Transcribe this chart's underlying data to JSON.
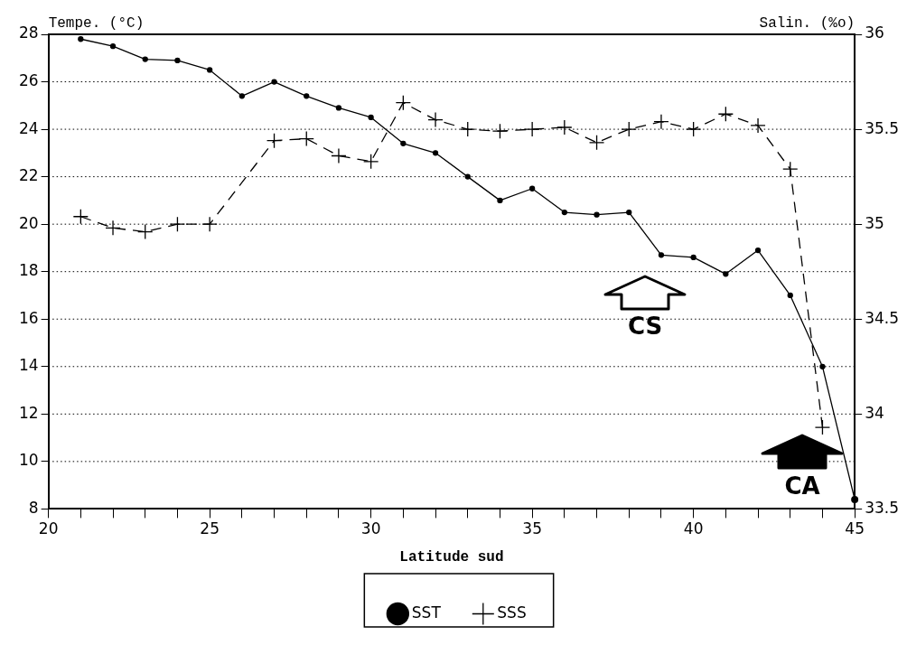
{
  "chart_data": {
    "type": "line",
    "xlabel": "Latitude sud",
    "ylabel": "Tempe. (°C)",
    "y2label": "Salin. (%o)",
    "xlim": [
      20,
      45
    ],
    "xticks": [
      20,
      {
        "value": 21,
        "label": null
      },
      {
        "value": 22,
        "label": null
      },
      {
        "value": 23,
        "label": null
      },
      {
        "value": 24,
        "label": null
      },
      25,
      {
        "value": 26,
        "label": null
      },
      {
        "value": 27,
        "label": null
      },
      {
        "value": 28,
        "label": null
      },
      {
        "value": 29,
        "label": null
      },
      30,
      {
        "value": 31,
        "label": null
      },
      {
        "value": 32,
        "label": null
      },
      {
        "value": 33,
        "label": null
      },
      {
        "value": 34,
        "label": null
      },
      35,
      {
        "value": 36,
        "label": null
      },
      {
        "value": 37,
        "label": null
      },
      {
        "value": 38,
        "label": null
      },
      {
        "value": 39,
        "label": null
      },
      40,
      {
        "value": 41,
        "label": null
      },
      {
        "value": 42,
        "label": null
      },
      {
        "value": 43,
        "label": null
      },
      {
        "value": 44,
        "label": null
      },
      45
    ],
    "ylim": [
      8,
      28
    ],
    "yticks": [
      8,
      10,
      12,
      14,
      16,
      18,
      20,
      22,
      24,
      26,
      28
    ],
    "y2lim": [
      33.5,
      36
    ],
    "y2ticks": [
      33.5,
      34,
      34.5,
      35,
      35.5,
      36
    ],
    "grid": "y",
    "legend": "bottom",
    "series": [
      {
        "name": "SST",
        "color": "#000000",
        "marker": "circle",
        "line_style": "solid",
        "x": [
          21,
          22,
          23,
          24,
          25,
          26,
          27,
          28,
          29,
          30,
          31,
          32,
          33,
          34,
          35,
          36,
          37,
          38,
          39,
          40,
          41,
          42,
          43,
          44,
          45
        ],
        "values": [
          27.8,
          27.5,
          26.95,
          26.9,
          26.5,
          25.4,
          26.0,
          25.4,
          24.9,
          24.5,
          23.4,
          23.0,
          22.0,
          21.0,
          21.5,
          20.5,
          20.4,
          20.5,
          18.7,
          18.6,
          17.9,
          18.9,
          17.0,
          14.0,
          8.4
        ]
      },
      {
        "name": "SSS",
        "color": "#000000",
        "marker": "cross",
        "line_style": "dashed",
        "axis": "y2",
        "x": [
          21,
          22,
          23,
          24,
          25,
          27,
          28,
          29,
          30,
          31,
          32,
          33,
          34,
          35,
          36,
          37,
          38,
          39,
          40,
          41,
          42,
          43,
          44
        ],
        "values": [
          35.04,
          34.98,
          34.96,
          35.0,
          35.0,
          35.44,
          35.45,
          35.36,
          35.33,
          35.64,
          35.55,
          35.5,
          35.49,
          35.5,
          35.51,
          35.43,
          35.5,
          35.54,
          35.5,
          35.58,
          35.52,
          35.29,
          33.93
        ]
      }
    ],
    "annotations": [
      "CS",
      "CA"
    ]
  }
}
